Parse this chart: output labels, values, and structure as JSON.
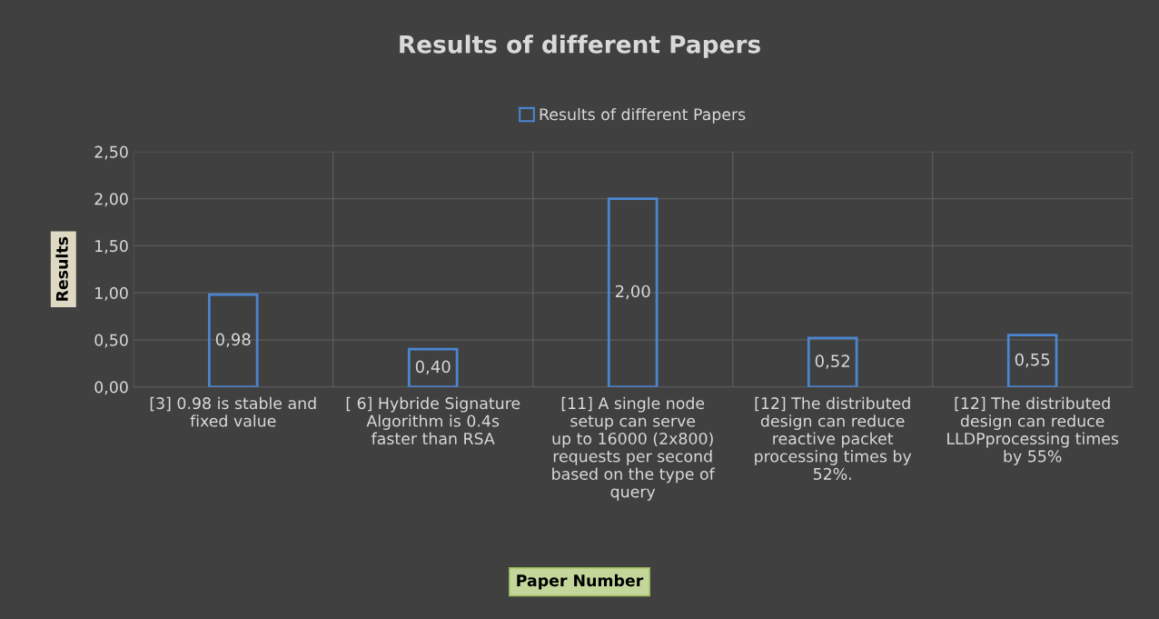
{
  "chart_data": {
    "type": "bar",
    "title": "Results of different Papers",
    "xlabel": "Paper Number",
    "ylabel": "Results",
    "categories": [
      "[3] 0.98 is stable and\nfixed value",
      "[ 6] Hybride Signature\nAlgorithm is 0.4s\nfaster than RSA",
      "[11] A single node\nsetup can serve\nup to 16000 (2x800)\nrequests per second\nbased on the type of\nquery",
      "[12] The distributed\ndesign can reduce\nreactive packet\nprocessing times by\n52%.",
      "[12] The distributed\ndesign can reduce\nLLDPprocessing times\nby 55%"
    ],
    "series": [
      {
        "name": "Results of different Papers",
        "color": "#4a86d0",
        "values": [
          0.98,
          0.4,
          2.0,
          0.52,
          0.55
        ],
        "value_labels": [
          "0,98",
          "0,40",
          "2,00",
          "0,52",
          "0,55"
        ]
      }
    ],
    "ylim": [
      0,
      2.5
    ],
    "yticks": [
      {
        "value": 0,
        "label": "0,00"
      },
      {
        "value": 0.5,
        "label": "0,50"
      },
      {
        "value": 1,
        "label": "1,00"
      },
      {
        "value": 1.5,
        "label": "1,50"
      },
      {
        "value": 2,
        "label": "2,00"
      },
      {
        "value": 2.5,
        "label": "2,50"
      }
    ],
    "grid": true,
    "legend": "top"
  }
}
